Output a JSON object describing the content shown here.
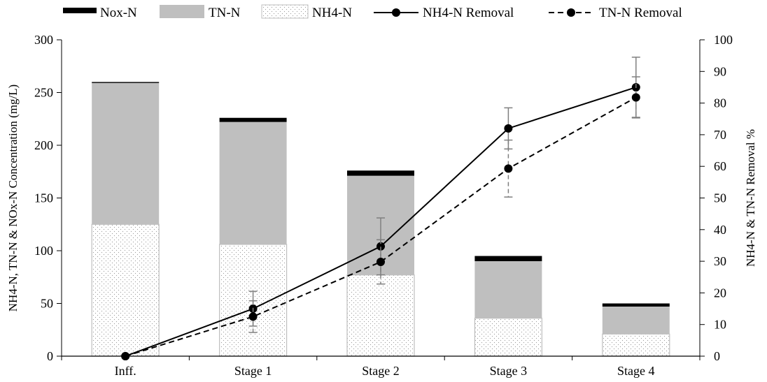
{
  "chart_data": {
    "type": "bar",
    "categories": [
      "Inff.",
      "Stage 1",
      "Stage 2",
      "Stage 3",
      "Stage 4"
    ],
    "ylabel": "NH4-N, TN-N & NOx-N Concentration (mg/L)",
    "ylabel_right": "NH4-N & TN-N Removal %",
    "ylim": [
      0,
      300
    ],
    "y_ticks": [
      0,
      50,
      100,
      150,
      200,
      250,
      300
    ],
    "ylim_right": [
      0,
      100
    ],
    "y_ticks_right": [
      0,
      10,
      20,
      30,
      40,
      50,
      60,
      70,
      80,
      90,
      100
    ],
    "legend_position": "top",
    "bar_series": [
      {
        "name": "Nox-N",
        "values": [
          1,
          4,
          5,
          5,
          3
        ],
        "color": "#000000"
      },
      {
        "name": "TN-N",
        "values": [
          259,
          222,
          171,
          90,
          47
        ],
        "color": "#bfbfbf"
      },
      {
        "name": "NH4-N",
        "values": [
          125,
          106,
          77,
          36,
          21
        ],
        "color": "#f2f2f2",
        "pattern": "dotted"
      }
    ],
    "line_series": [
      {
        "name": "NH4-N Removal",
        "values": [
          0,
          15,
          34.7,
          72,
          85
        ],
        "error": [
          0,
          5.5,
          9,
          6.5,
          9.5
        ],
        "style": "solid",
        "color": "#000000"
      },
      {
        "name": "TN-N Removal",
        "values": [
          0,
          12.5,
          29.8,
          59.3,
          81.8
        ],
        "error": [
          0,
          5,
          7,
          9,
          6.5
        ],
        "style": "dashed",
        "color": "#000000"
      }
    ]
  }
}
